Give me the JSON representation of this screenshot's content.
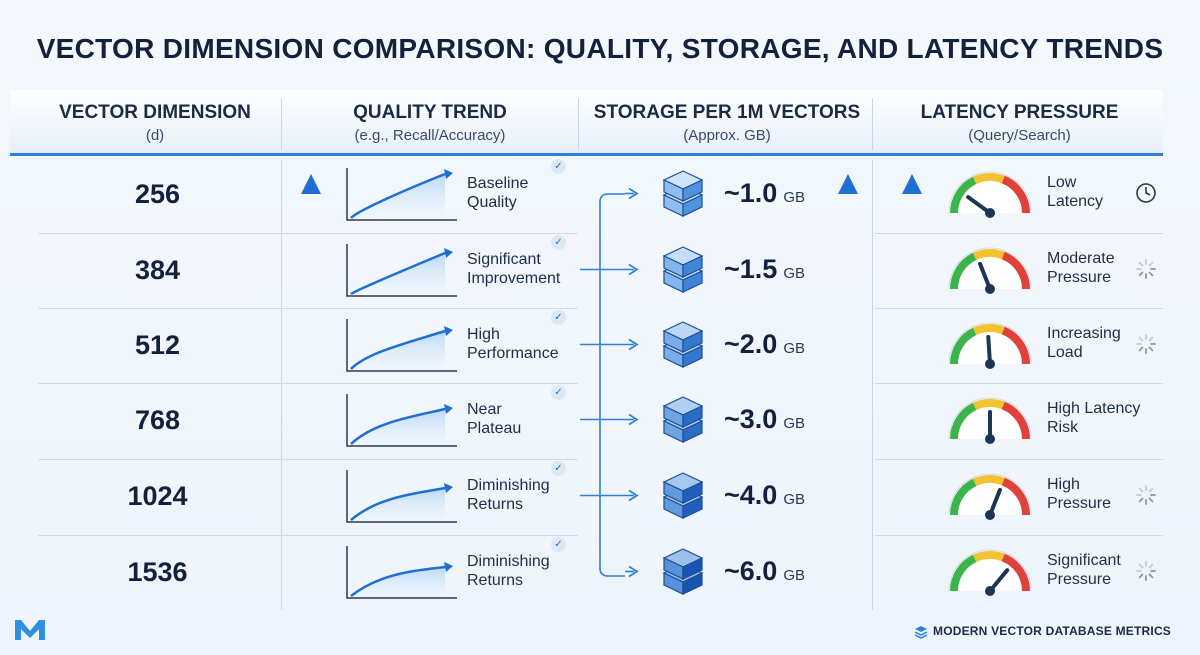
{
  "title": "VECTOR DIMENSION COMPARISON: QUALITY, STORAGE, AND LATENCY TRENDS",
  "columns": [
    {
      "main": "VECTOR DIMENSION",
      "sub": "(d)"
    },
    {
      "main": "QUALITY TREND",
      "sub": "(e.g., Recall/Accuracy)"
    },
    {
      "main": "STORAGE PER 1M VECTORS",
      "sub": "(Approx. GB)"
    },
    {
      "main": "LATENCY PRESSURE",
      "sub": "(Query/Search)"
    }
  ],
  "rows": [
    {
      "dimension": "256",
      "quality_line1": "Baseline",
      "quality_line2": "Quality",
      "storage": "~1.0",
      "unit": "GB",
      "latency_line1": "Low",
      "latency_line2": "Latency",
      "latency_icon": "clock-icon"
    },
    {
      "dimension": "384",
      "quality_line1": "Significant",
      "quality_line2": "Improvement",
      "storage": "~1.5",
      "unit": "GB",
      "latency_line1": "Moderate",
      "latency_line2": "Pressure",
      "latency_icon": "spinner-icon"
    },
    {
      "dimension": "512",
      "quality_line1": "High",
      "quality_line2": "Performance",
      "storage": "~2.0",
      "unit": "GB",
      "latency_line1": "Increasing",
      "latency_line2": "Load",
      "latency_icon": "spinner-icon"
    },
    {
      "dimension": "768",
      "quality_line1": "Near",
      "quality_line2": "Plateau",
      "storage": "~3.0",
      "unit": "GB",
      "latency_line1": "High Latency",
      "latency_line2": "Risk",
      "latency_icon": "none"
    },
    {
      "dimension": "1024",
      "quality_line1": "Diminishing",
      "quality_line2": "Returns",
      "storage": "~4.0",
      "unit": "GB",
      "latency_line1": "High",
      "latency_line2": "Pressure",
      "latency_icon": "spinner-icon"
    },
    {
      "dimension": "1536",
      "quality_line1": "Diminishing",
      "quality_line2": "Returns",
      "storage": "~6.0",
      "unit": "GB",
      "latency_line1": "Significant",
      "latency_line2": "Pressure",
      "latency_icon": "spinner-icon"
    }
  ],
  "gauge_levels": [
    0.2,
    0.38,
    0.48,
    0.5,
    0.62,
    0.72
  ],
  "footer": "MODERN VECTOR DATABASE METRICS",
  "colors": {
    "accent": "#2f7fd6",
    "arrow": "#1f6fd1",
    "gauge_green": "#3bb54a",
    "gauge_yellow": "#f2c230",
    "gauge_red": "#e0413a"
  }
}
